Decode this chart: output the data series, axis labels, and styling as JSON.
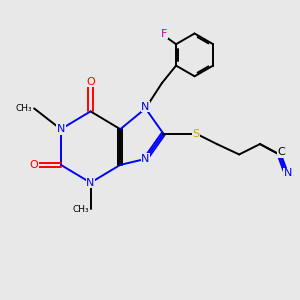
{
  "bg_color": "#e8e8e8",
  "colors": {
    "N": "#0000ff",
    "O": "#ff0000",
    "S": "#ccaa00",
    "F": "#cc00aa",
    "C": "#000000",
    "bond": "#000000"
  },
  "lw": 1.4,
  "fs": 8.0,
  "figsize": [
    3.0,
    3.0
  ],
  "dpi": 100
}
